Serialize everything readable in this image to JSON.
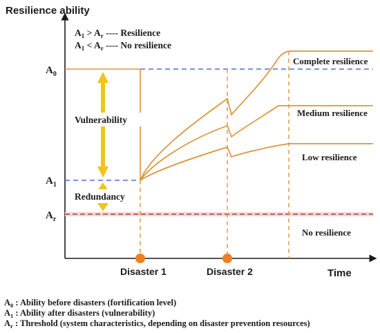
{
  "y_axis_title": "Resilience ability",
  "x_axis_title": "Time",
  "legend": {
    "line1": {
      "a": "A",
      "a_sub": "1",
      "op": " > ",
      "b": "A",
      "b_sub": "r",
      "text": " ---- Resilience"
    },
    "line2": {
      "a": "A",
      "a_sub": "1",
      "op": " < ",
      "b": "A",
      "b_sub": "r",
      "text": " ---- No resilience"
    }
  },
  "levels": {
    "a0": {
      "main": "A",
      "sub": "0"
    },
    "a1": {
      "main": "A",
      "sub": "1"
    },
    "ar": {
      "main": "A",
      "sub": "r"
    }
  },
  "arrow_labels": {
    "vulnerability": "Vulnerability",
    "redundancy": "Redundancy"
  },
  "curve_labels": {
    "complete": "Complete resilience",
    "medium": "Medium resilience",
    "low": "Low resilience",
    "none": "No resilience"
  },
  "events": {
    "disaster1": "Disaster 1",
    "disaster2": "Disaster 2"
  },
  "footnotes": [
    {
      "main": "A",
      "sub": "0",
      "text": " : Ability before disasters (fortification level)"
    },
    {
      "main": "A",
      "sub": "1",
      "text": " : Ability after disasters (vulnerability)"
    },
    {
      "main": "A",
      "sub": "r",
      "text": " : Threshold (system characteristics, depending on disaster prevention resources)"
    }
  ],
  "colors": {
    "curve": "#d9953a",
    "a0_line": "#4a6fd0",
    "a1_line": "#4a6fd0",
    "ar_line": "#b23a2a",
    "arrow": "#f0c419",
    "dot": "#ef7f22",
    "axis": "#1a1a1a"
  }
}
